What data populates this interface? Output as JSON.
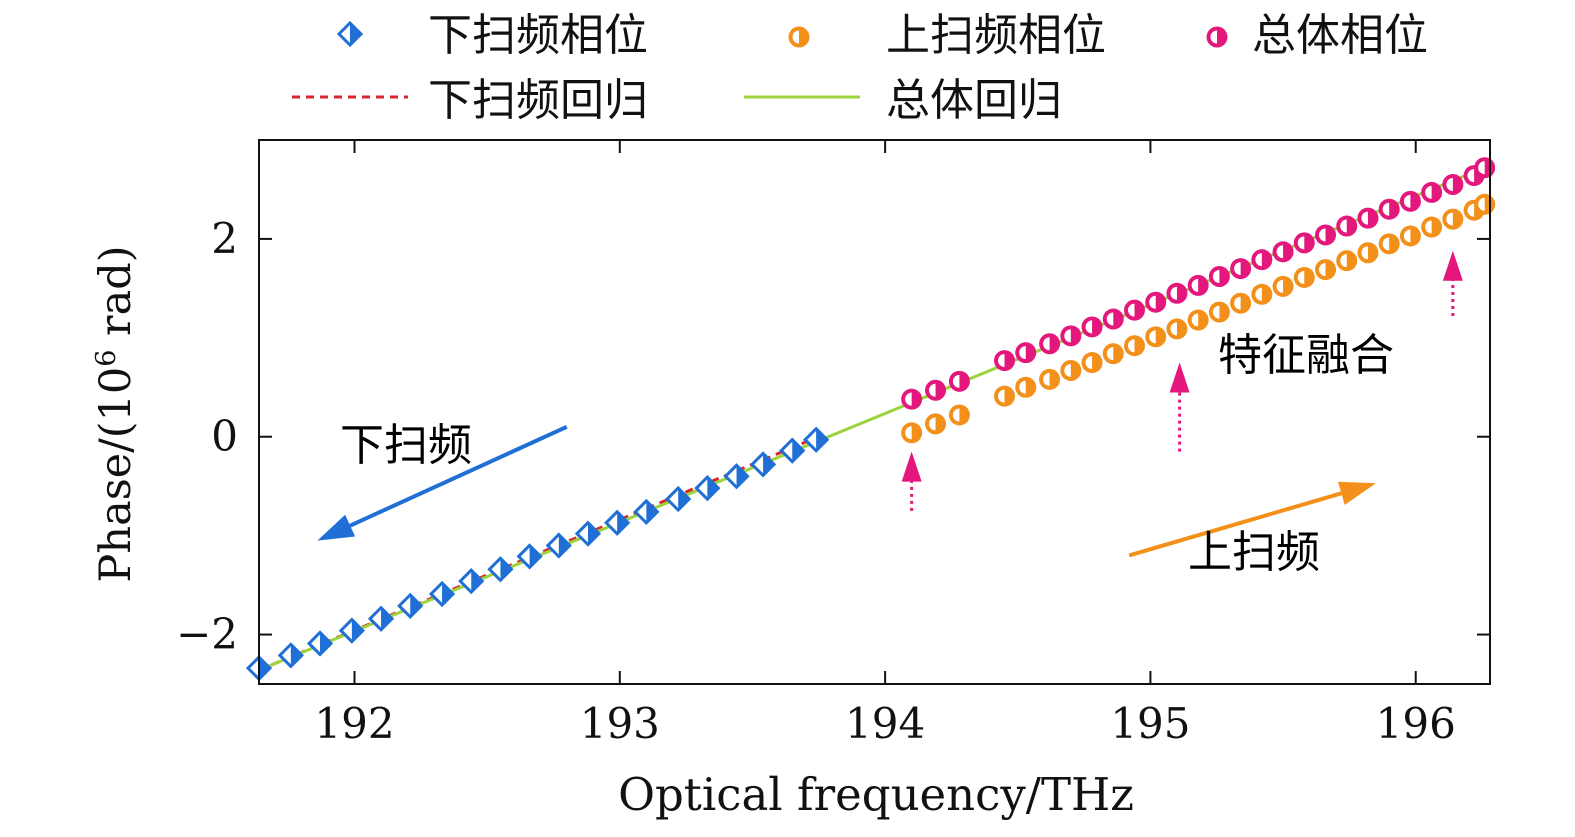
{
  "chart_data": {
    "type": "scatter",
    "xlabel": "Optical frequency/THz",
    "ylabel_main": "Phase/(10",
    "ylabel_sup": "6",
    "ylabel_tail": " rad)",
    "xlim": [
      191.64,
      196.28
    ],
    "ylim": [
      -2.5,
      3.0
    ],
    "x_ticks": [
      192,
      193,
      194,
      195,
      196
    ],
    "x_tick_labels": [
      "192",
      "193",
      "194",
      "195",
      "196"
    ],
    "y_ticks": [
      -2,
      0,
      2
    ],
    "y_tick_labels": [
      "−2",
      "0",
      "2"
    ],
    "series": [
      {
        "name": "下扫频相位",
        "marker": "diamond-half",
        "color": "#1f6fd6",
        "x": [
          191.64,
          191.76,
          191.87,
          191.99,
          192.1,
          192.21,
          192.33,
          192.44,
          192.55,
          192.66,
          192.77,
          192.88,
          192.99,
          193.1,
          193.22,
          193.33,
          193.44,
          193.54,
          193.65,
          193.74
        ],
        "values": [
          -2.34,
          -2.21,
          -2.09,
          -1.96,
          -1.84,
          -1.71,
          -1.59,
          -1.46,
          -1.34,
          -1.21,
          -1.1,
          -0.98,
          -0.87,
          -0.76,
          -0.63,
          -0.52,
          -0.4,
          -0.28,
          -0.14,
          -0.03
        ]
      },
      {
        "name": "上扫频相位",
        "marker": "circle-half",
        "color": "#f39019",
        "x": [
          194.1,
          194.19,
          194.28,
          194.45,
          194.53,
          194.62,
          194.7,
          194.78,
          194.86,
          194.94,
          195.02,
          195.1,
          195.18,
          195.26,
          195.34,
          195.42,
          195.5,
          195.58,
          195.66,
          195.74,
          195.82,
          195.9,
          195.98,
          196.06,
          196.14,
          196.22,
          196.26
        ],
        "values": [
          0.04,
          0.13,
          0.22,
          0.41,
          0.5,
          0.58,
          0.67,
          0.75,
          0.84,
          0.92,
          1.01,
          1.09,
          1.18,
          1.26,
          1.35,
          1.44,
          1.52,
          1.61,
          1.69,
          1.78,
          1.86,
          1.95,
          2.03,
          2.12,
          2.2,
          2.29,
          2.35
        ]
      },
      {
        "name": "总体相位",
        "marker": "circle-half",
        "color": "#e4187c",
        "x": [
          194.1,
          194.19,
          194.28,
          194.45,
          194.53,
          194.62,
          194.7,
          194.78,
          194.86,
          194.94,
          195.02,
          195.1,
          195.18,
          195.26,
          195.34,
          195.42,
          195.5,
          195.58,
          195.66,
          195.74,
          195.82,
          195.9,
          195.98,
          196.06,
          196.14,
          196.22,
          196.26
        ],
        "values": [
          0.38,
          0.47,
          0.56,
          0.77,
          0.85,
          0.94,
          1.02,
          1.11,
          1.19,
          1.28,
          1.36,
          1.45,
          1.53,
          1.62,
          1.7,
          1.79,
          1.87,
          1.96,
          2.04,
          2.13,
          2.21,
          2.3,
          2.38,
          2.47,
          2.55,
          2.64,
          2.72
        ]
      }
    ],
    "regressions": [
      {
        "name": "下扫频回归",
        "style": "dashed",
        "color": "#d9262c",
        "x": [
          191.64,
          193.74
        ],
        "values": [
          -2.36,
          -0.01
        ]
      },
      {
        "name": "总体回归",
        "style": "solid",
        "color": "#9bd43c",
        "x": [
          191.64,
          196.26
        ],
        "values": [
          -2.36,
          2.72
        ]
      }
    ],
    "annotations": [
      {
        "text": "下扫频",
        "color": "#000000"
      },
      {
        "text": "上扫频",
        "color": "#000000"
      },
      {
        "text": "特征融合",
        "color": "#000000"
      }
    ],
    "arrows": [
      {
        "name": "down-sweep-arrow",
        "color": "#1f6fd6",
        "from": [
          192.8,
          0.1
        ],
        "to": [
          191.86,
          -1.05
        ]
      },
      {
        "name": "up-sweep-arrow",
        "color": "#f39019",
        "from": [
          194.92,
          -1.2
        ],
        "to": [
          195.85,
          -0.47
        ]
      }
    ],
    "marker_arrows": [
      {
        "color": "#e4187c",
        "x": 194.1,
        "y_from": -0.75,
        "y_to": -0.15
      },
      {
        "color": "#e4187c",
        "x": 195.11,
        "y_from": -0.15,
        "y_to": 0.75
      },
      {
        "color": "#e4187c",
        "x": 196.14,
        "y_from": 1.22,
        "y_to": 1.88
      }
    ],
    "legend": {
      "position": "top",
      "entries": [
        {
          "label": "下扫频相位",
          "kind": "diamond",
          "color": "#1f6fd6"
        },
        {
          "label": "上扫频相位",
          "kind": "circle",
          "color": "#f39019"
        },
        {
          "label": "总体相位",
          "kind": "circle",
          "color": "#e4187c"
        },
        {
          "label": "下扫频回归",
          "kind": "dashed",
          "color": "#d9262c"
        },
        {
          "label": "总体回归",
          "kind": "solid",
          "color": "#9bd43c"
        }
      ]
    }
  }
}
